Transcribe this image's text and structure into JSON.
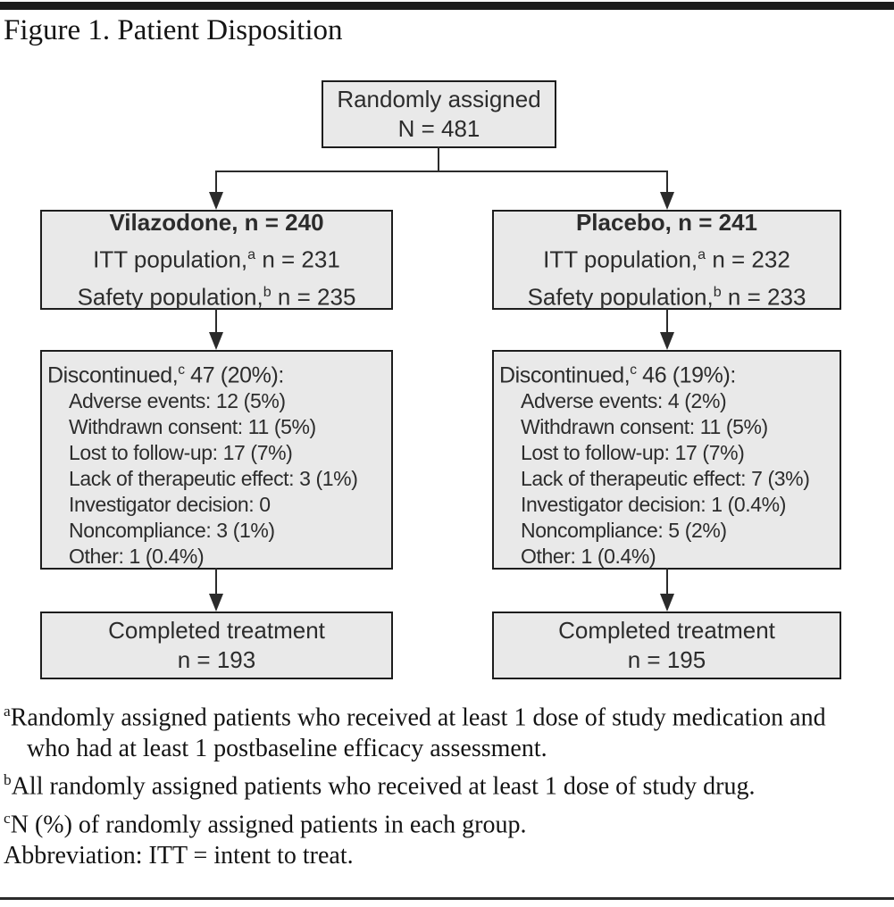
{
  "title": "Figure 1. Patient Disposition",
  "colors": {
    "box_fill": "#e9e9e9",
    "box_border": "#1d1d1d",
    "connector": "#2b2b2b",
    "text": "#2c2c2c"
  },
  "flowchart": {
    "randomized": {
      "line1": "Randomly assigned",
      "line2": "N = 481"
    },
    "arms": [
      {
        "id": "vilazodone",
        "header": "Vilazodone, n = 240",
        "itt": {
          "pre": "ITT population,",
          "sup": "a",
          "post": " n = 231"
        },
        "safety": {
          "pre": "Safety population,",
          "sup": "b",
          "post": " n = 235"
        },
        "discontinued": {
          "header": {
            "pre": "Discontinued,",
            "sup": "c",
            "post": " 47 (20%):"
          },
          "items": [
            "Adverse events: 12 (5%)",
            "Withdrawn consent: 11 (5%)",
            "Lost to follow-up: 17 (7%)",
            "Lack of therapeutic effect: 3 (1%)",
            "Investigator decision: 0",
            "Noncompliance: 3 (1%)",
            "Other: 1 (0.4%)"
          ]
        },
        "completed": {
          "line1": "Completed treatment",
          "line2": "n = 193"
        }
      },
      {
        "id": "placebo",
        "header": "Placebo, n = 241",
        "itt": {
          "pre": "ITT population,",
          "sup": "a",
          "post": " n = 232"
        },
        "safety": {
          "pre": "Safety population,",
          "sup": "b",
          "post": " n = 233"
        },
        "discontinued": {
          "header": {
            "pre": "Discontinued,",
            "sup": "c",
            "post": " 46 (19%):"
          },
          "items": [
            "Adverse events: 4 (2%)",
            "Withdrawn consent: 11 (5%)",
            "Lost to follow-up: 17 (7%)",
            "Lack of therapeutic effect: 7 (3%)",
            "Investigator decision: 1 (0.4%)",
            "Noncompliance: 5 (2%)",
            "Other: 1 (0.4%)"
          ]
        },
        "completed": {
          "line1": "Completed treatment",
          "line2": "n = 195"
        }
      }
    ]
  },
  "footnotes": [
    {
      "sup": "a",
      "text": "Randomly assigned patients who received at least 1 dose of study medication and who had at least 1 postbaseline efficacy assessment."
    },
    {
      "sup": "b",
      "text": "All randomly assigned patients who received at least 1 dose of study drug."
    },
    {
      "sup": "c",
      "text": "N (%) of randomly assigned patients in each group."
    }
  ],
  "abbreviation": "Abbreviation: ITT = intent to treat."
}
